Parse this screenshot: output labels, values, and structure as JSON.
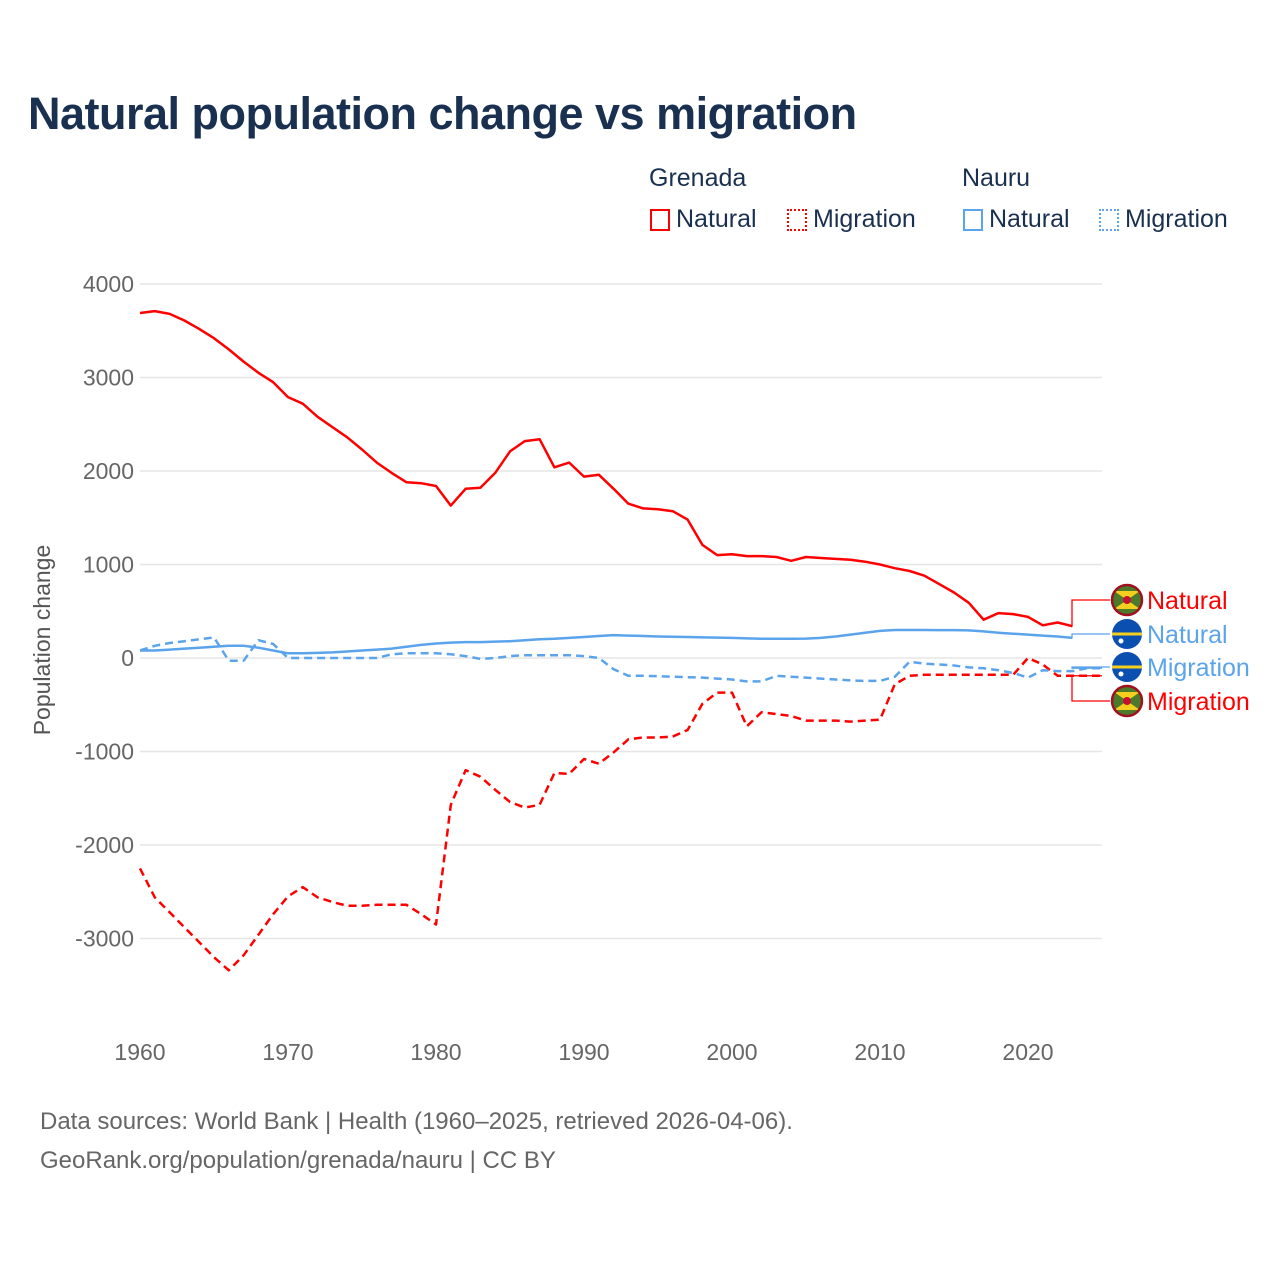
{
  "chart_data": {
    "type": "line",
    "title": "Natural population change vs migration",
    "xlabel": "",
    "ylabel": "Population change",
    "xlim": [
      1960,
      2025
    ],
    "ylim": [
      -4000,
      4000
    ],
    "xticks": [
      1960,
      1970,
      1980,
      1990,
      2000,
      2010,
      2020
    ],
    "yticks": [
      4000,
      3000,
      2000,
      1000,
      0,
      -1000,
      -2000,
      -3000
    ],
    "grid": true,
    "legend_placement": "top-right",
    "legend_groups": [
      {
        "title": "Grenada",
        "items": [
          "Natural",
          "Migration"
        ]
      },
      {
        "title": "Nauru",
        "items": [
          "Natural",
          "Migration"
        ]
      }
    ],
    "series": [
      {
        "name": "Natural",
        "country": "Grenada",
        "color": "#ff0000",
        "dash": false,
        "start_year": 1960,
        "values": [
          3690,
          3710,
          3680,
          3610,
          3520,
          3420,
          3300,
          3170,
          3050,
          2950,
          2790,
          2720,
          2580,
          2470,
          2360,
          2230,
          2090,
          1980,
          1880,
          1870,
          1840,
          1630,
          1810,
          1820,
          1980,
          2210,
          2320,
          2340,
          2040,
          2090,
          1940,
          1960,
          1810,
          1650,
          1600,
          1590,
          1570,
          1480,
          1210,
          1100,
          1110,
          1090,
          1090,
          1080,
          1040,
          1080,
          1070,
          1060,
          1050,
          1030,
          1000,
          960,
          930,
          880,
          790,
          700,
          590,
          410,
          480,
          470,
          440,
          350,
          380,
          340
        ]
      },
      {
        "name": "Migration",
        "country": "Grenada",
        "color": "#ff0000",
        "dash": true,
        "start_year": 1960,
        "values": [
          -2250,
          -2560,
          -2720,
          -2880,
          -3040,
          -3200,
          -3340,
          -3180,
          -2960,
          -2740,
          -2550,
          -2450,
          -2560,
          -2610,
          -2650,
          -2650,
          -2640,
          -2640,
          -2640,
          -2740,
          -2850,
          -1570,
          -1200,
          -1270,
          -1410,
          -1540,
          -1600,
          -1570,
          -1230,
          -1240,
          -1080,
          -1130,
          -1010,
          -870,
          -850,
          -850,
          -840,
          -770,
          -490,
          -370,
          -370,
          -730,
          -580,
          -600,
          -620,
          -670,
          -670,
          -670,
          -680,
          -670,
          -660,
          -280,
          -190,
          -180,
          -180,
          -180,
          -180,
          -180,
          -180,
          -180,
          0,
          -70,
          -190,
          -190,
          -190,
          -190
        ]
      },
      {
        "name": "Natural",
        "country": "Nauru",
        "color": "#5ba4ec",
        "dash": false,
        "start_year": 1960,
        "values": [
          80,
          80,
          90,
          100,
          110,
          120,
          130,
          130,
          110,
          80,
          50,
          50,
          55,
          60,
          70,
          80,
          90,
          100,
          120,
          140,
          155,
          165,
          170,
          170,
          175,
          180,
          190,
          200,
          205,
          215,
          225,
          235,
          245,
          240,
          235,
          230,
          228,
          225,
          220,
          218,
          215,
          210,
          205,
          205,
          205,
          208,
          215,
          230,
          250,
          270,
          290,
          300,
          300,
          300,
          298,
          298,
          295,
          285,
          270,
          260,
          250,
          240,
          230,
          215
        ]
      },
      {
        "name": "Migration",
        "country": "Nauru",
        "color": "#5ba4ec",
        "dash": true,
        "start_year": 1960,
        "values": [
          80,
          130,
          160,
          180,
          200,
          220,
          -30,
          -30,
          190,
          150,
          0,
          0,
          0,
          0,
          0,
          0,
          0,
          40,
          50,
          50,
          50,
          40,
          20,
          -10,
          0,
          20,
          30,
          30,
          30,
          30,
          20,
          0,
          -120,
          -190,
          -190,
          -195,
          -200,
          -205,
          -210,
          -220,
          -230,
          -250,
          -250,
          -190,
          -200,
          -210,
          -220,
          -230,
          -240,
          -245,
          -245,
          -200,
          -40,
          -60,
          -70,
          -80,
          -100,
          -110,
          -130,
          -160,
          -210,
          -130,
          -140,
          -140,
          -110,
          -110
        ]
      }
    ],
    "end_labels": [
      {
        "text": "Natural",
        "country": "Grenada",
        "color": "#ff0000"
      },
      {
        "text": "Natural",
        "country": "Nauru",
        "color": "#5ba4ec"
      },
      {
        "text": "Migration",
        "country": "Nauru",
        "color": "#5ba4ec"
      },
      {
        "text": "Migration",
        "country": "Grenada",
        "color": "#ff0000"
      }
    ]
  },
  "footer": {
    "line1": "Data sources: World Bank | Health (1960–2025, retrieved 2026-04-06).",
    "line2": "GeoRank.org/population/grenada/nauru | CC BY"
  }
}
